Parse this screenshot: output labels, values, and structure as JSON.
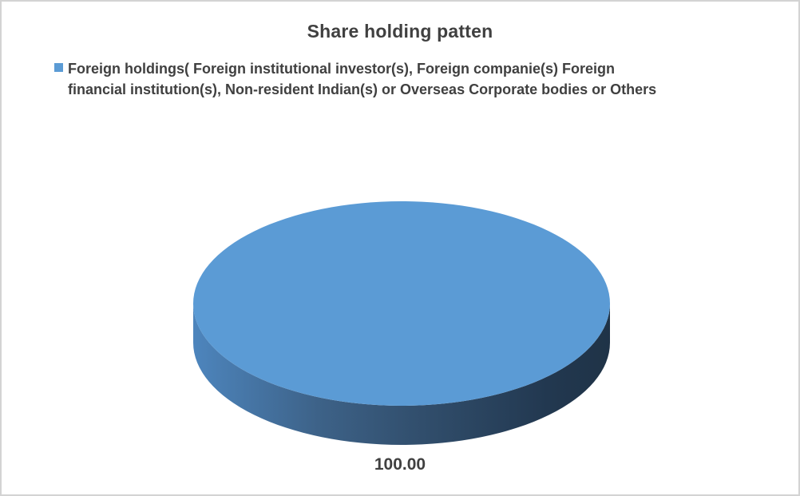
{
  "chart": {
    "title": "Share holding patten",
    "legend": {
      "lines": [
        "Foreign holdings( Foreign institutional investor(s), Foreign companie(s) Foreign",
        "financial institution(s), Non-resident Indian(s) or Overseas Corporate bodies or Others"
      ]
    },
    "data_label": "100.00"
  },
  "chart_data": {
    "type": "pie",
    "style": "3d",
    "title": "Share holding patten",
    "categories": [
      "Foreign holdings( Foreign institutional investor(s), Foreign companie(s) Foreign financial institution(s), Non-resident Indian(s) or Overseas Corporate bodies or Others"
    ],
    "values": [
      100.0
    ],
    "data_labels": [
      "100.00"
    ],
    "legend_position": "top-left",
    "colors": {
      "slice_top": "#5B9BD5",
      "side_gradient": [
        {
          "offset": 0,
          "color": "#4D85BD"
        },
        {
          "offset": 0.3,
          "color": "#3D6288"
        },
        {
          "offset": 0.55,
          "color": "#314E6C"
        },
        {
          "offset": 0.85,
          "color": "#223850"
        },
        {
          "offset": 1,
          "color": "#1F3347"
        }
      ],
      "text": "#404040",
      "border": "#D3D3D3"
    }
  }
}
